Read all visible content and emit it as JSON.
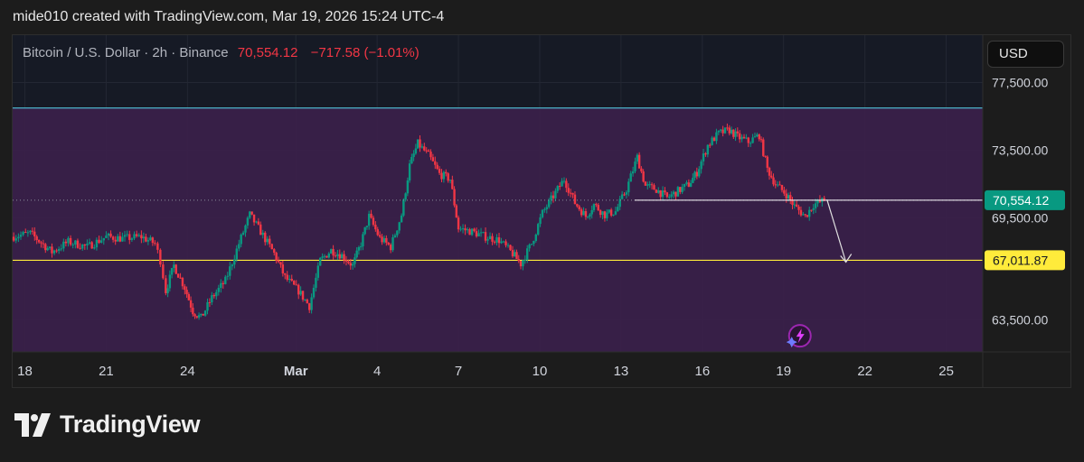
{
  "caption": "mide010 created with TradingView.com, Mar 19, 2026 15:24 UTC-4",
  "header": {
    "symbol": "Bitcoin / U.S. Dollar · 2h · Binance",
    "last": "70,554.12",
    "change": "−717.58 (−1.01%)"
  },
  "currency_button": "USD",
  "footer": {
    "brand": "TradingView"
  },
  "colors": {
    "up": "#089981",
    "down": "#f23645",
    "zone": "#3b1f4a",
    "resistance": "#4fc3d9",
    "support": "#ffeb3b",
    "price_line": "#ffffff",
    "background": "#161a25",
    "accent": "#9c27b0"
  },
  "chart_data": {
    "type": "candlestick",
    "symbol": "BTCUSD",
    "interval": "2h",
    "exchange": "Binance",
    "ylim": [
      61600,
      80300
    ],
    "y_ticks": [
      63500,
      69500,
      73500,
      77500
    ],
    "y_tick_labels": [
      "63,500.00",
      "69,500.00",
      "73,500.00",
      "77,500.00"
    ],
    "x_ticks": [
      {
        "label": "18",
        "day": 18
      },
      {
        "label": "21",
        "day": 21
      },
      {
        "label": "24",
        "day": 24
      },
      {
        "label": "Mar",
        "day": 28
      },
      {
        "label": "4",
        "day": 31
      },
      {
        "label": "7",
        "day": 34
      },
      {
        "label": "10",
        "day": 37
      },
      {
        "label": "13",
        "day": 40
      },
      {
        "label": "16",
        "day": 43
      },
      {
        "label": "19",
        "day": 46
      },
      {
        "label": "22",
        "day": 49
      },
      {
        "label": "25",
        "day": 52
      }
    ],
    "zone": {
      "top": 76000,
      "bottom": 61600
    },
    "resistance": 76000,
    "support": 67011.87,
    "support_label": "67,011.87",
    "last_price": 70554.12,
    "last_price_label": "70,554.12",
    "projection": {
      "from": [
        47.6,
        70600
      ],
      "to": [
        48.3,
        66900
      ]
    },
    "path": [
      [
        17.5,
        68400
      ],
      [
        18.2,
        68600
      ],
      [
        19.0,
        67500
      ],
      [
        19.6,
        68100
      ],
      [
        20.3,
        67800
      ],
      [
        21.0,
        68400
      ],
      [
        21.6,
        68300
      ],
      [
        22.3,
        68400
      ],
      [
        22.8,
        68000
      ],
      [
        23.0,
        67000
      ],
      [
        23.2,
        65200
      ],
      [
        23.5,
        66700
      ],
      [
        23.9,
        65400
      ],
      [
        24.2,
        64000
      ],
      [
        24.5,
        63600
      ],
      [
        24.9,
        64800
      ],
      [
        25.4,
        65800
      ],
      [
        25.9,
        68000
      ],
      [
        26.3,
        69700
      ],
      [
        26.7,
        68700
      ],
      [
        27.2,
        67400
      ],
      [
        27.6,
        66000
      ],
      [
        28.1,
        65200
      ],
      [
        28.5,
        64300
      ],
      [
        28.9,
        67000
      ],
      [
        29.3,
        67600
      ],
      [
        29.7,
        67300
      ],
      [
        30.1,
        66700
      ],
      [
        30.4,
        68000
      ],
      [
        30.7,
        69600
      ],
      [
        31.1,
        68300
      ],
      [
        31.5,
        67800
      ],
      [
        31.9,
        69700
      ],
      [
        32.2,
        72600
      ],
      [
        32.5,
        73900
      ],
      [
        32.9,
        73200
      ],
      [
        33.3,
        72100
      ],
      [
        33.7,
        71800
      ],
      [
        34.0,
        68900
      ],
      [
        34.5,
        68700
      ],
      [
        35.0,
        68400
      ],
      [
        35.5,
        68200
      ],
      [
        36.0,
        67400
      ],
      [
        36.3,
        66800
      ],
      [
        36.7,
        68000
      ],
      [
        37.1,
        69800
      ],
      [
        37.5,
        70800
      ],
      [
        37.9,
        71800
      ],
      [
        38.3,
        70400
      ],
      [
        38.7,
        69600
      ],
      [
        39.0,
        70300
      ],
      [
        39.4,
        69700
      ],
      [
        39.8,
        69900
      ],
      [
        40.2,
        71200
      ],
      [
        40.6,
        73100
      ],
      [
        40.9,
        71400
      ],
      [
        41.3,
        71200
      ],
      [
        41.7,
        70700
      ],
      [
        42.1,
        71100
      ],
      [
        42.5,
        71500
      ],
      [
        42.8,
        72200
      ],
      [
        43.2,
        73800
      ],
      [
        43.6,
        74500
      ],
      [
        44.0,
        74700
      ],
      [
        44.3,
        74300
      ],
      [
        44.7,
        74000
      ],
      [
        45.1,
        74400
      ],
      [
        45.4,
        72400
      ],
      [
        45.7,
        71500
      ],
      [
        46.1,
        70900
      ],
      [
        46.4,
        70200
      ],
      [
        46.8,
        69600
      ],
      [
        47.1,
        70300
      ],
      [
        47.5,
        70554
      ]
    ]
  }
}
